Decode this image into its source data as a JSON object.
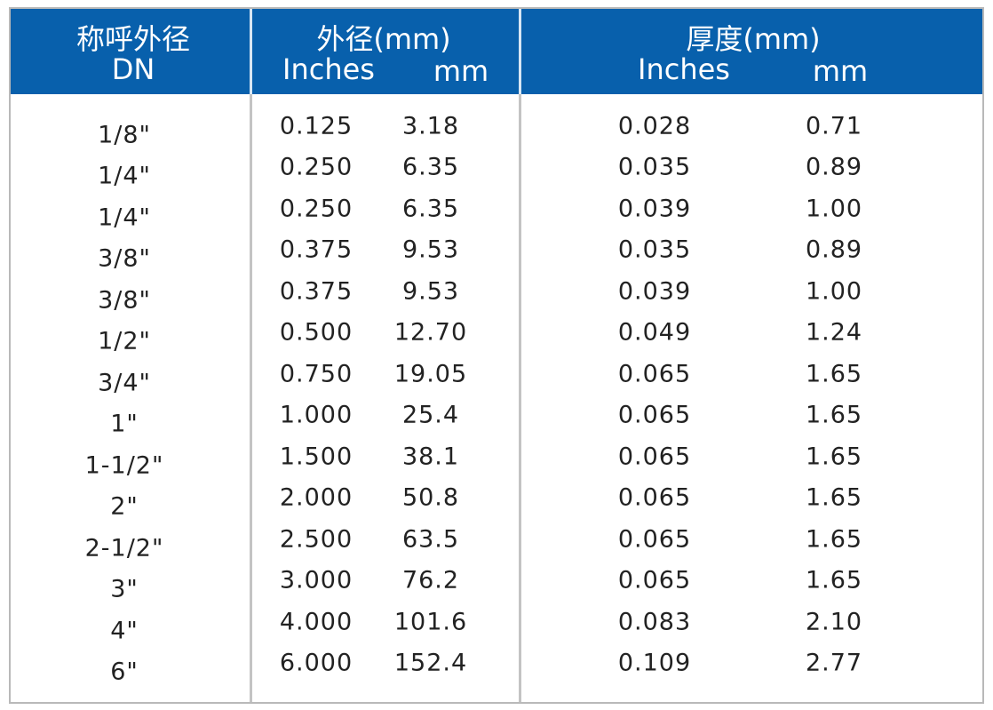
{
  "header": {
    "dn": {
      "title": "称呼外径",
      "subtitle": "DN"
    },
    "od": {
      "title": "外径(mm)",
      "inches": "Inches",
      "mm": "mm"
    },
    "wall": {
      "title": "厚度(mm)",
      "inches": "Inches",
      "mm": "mm"
    }
  },
  "table": {
    "rows": [
      [
        "1/8\"",
        "0.125",
        "3.18",
        "0.028",
        "0.71"
      ],
      [
        "1/4\"",
        "0.250",
        "6.35",
        "0.035",
        "0.89"
      ],
      [
        "1/4\"",
        "0.250",
        "6.35",
        "0.039",
        "1.00"
      ],
      [
        "3/8\"",
        "0.375",
        "9.53",
        "0.035",
        "0.89"
      ],
      [
        "3/8\"",
        "0.375",
        "9.53",
        "0.039",
        "1.00"
      ],
      [
        "1/2\"",
        "0.500",
        "12.70",
        "0.049",
        "1.24"
      ],
      [
        "3/4\"",
        "0.750",
        "19.05",
        "0.065",
        "1.65"
      ],
      [
        "1\"",
        "1.000",
        "25.4",
        "0.065",
        "1.65"
      ],
      [
        "1-1/2\"",
        "1.500",
        "38.1",
        "0.065",
        "1.65"
      ],
      [
        "2\"",
        "2.000",
        "50.8",
        "0.065",
        "1.65"
      ],
      [
        "2-1/2\"",
        "2.500",
        "63.5",
        "0.065",
        "1.65"
      ],
      [
        "3\"",
        "3.000",
        "76.2",
        "0.065",
        "1.65"
      ],
      [
        "4\"",
        "4.000",
        "101.6",
        "0.083",
        "2.10"
      ],
      [
        "6\"",
        "6.000",
        "152.4",
        "0.109",
        "2.77"
      ]
    ]
  }
}
